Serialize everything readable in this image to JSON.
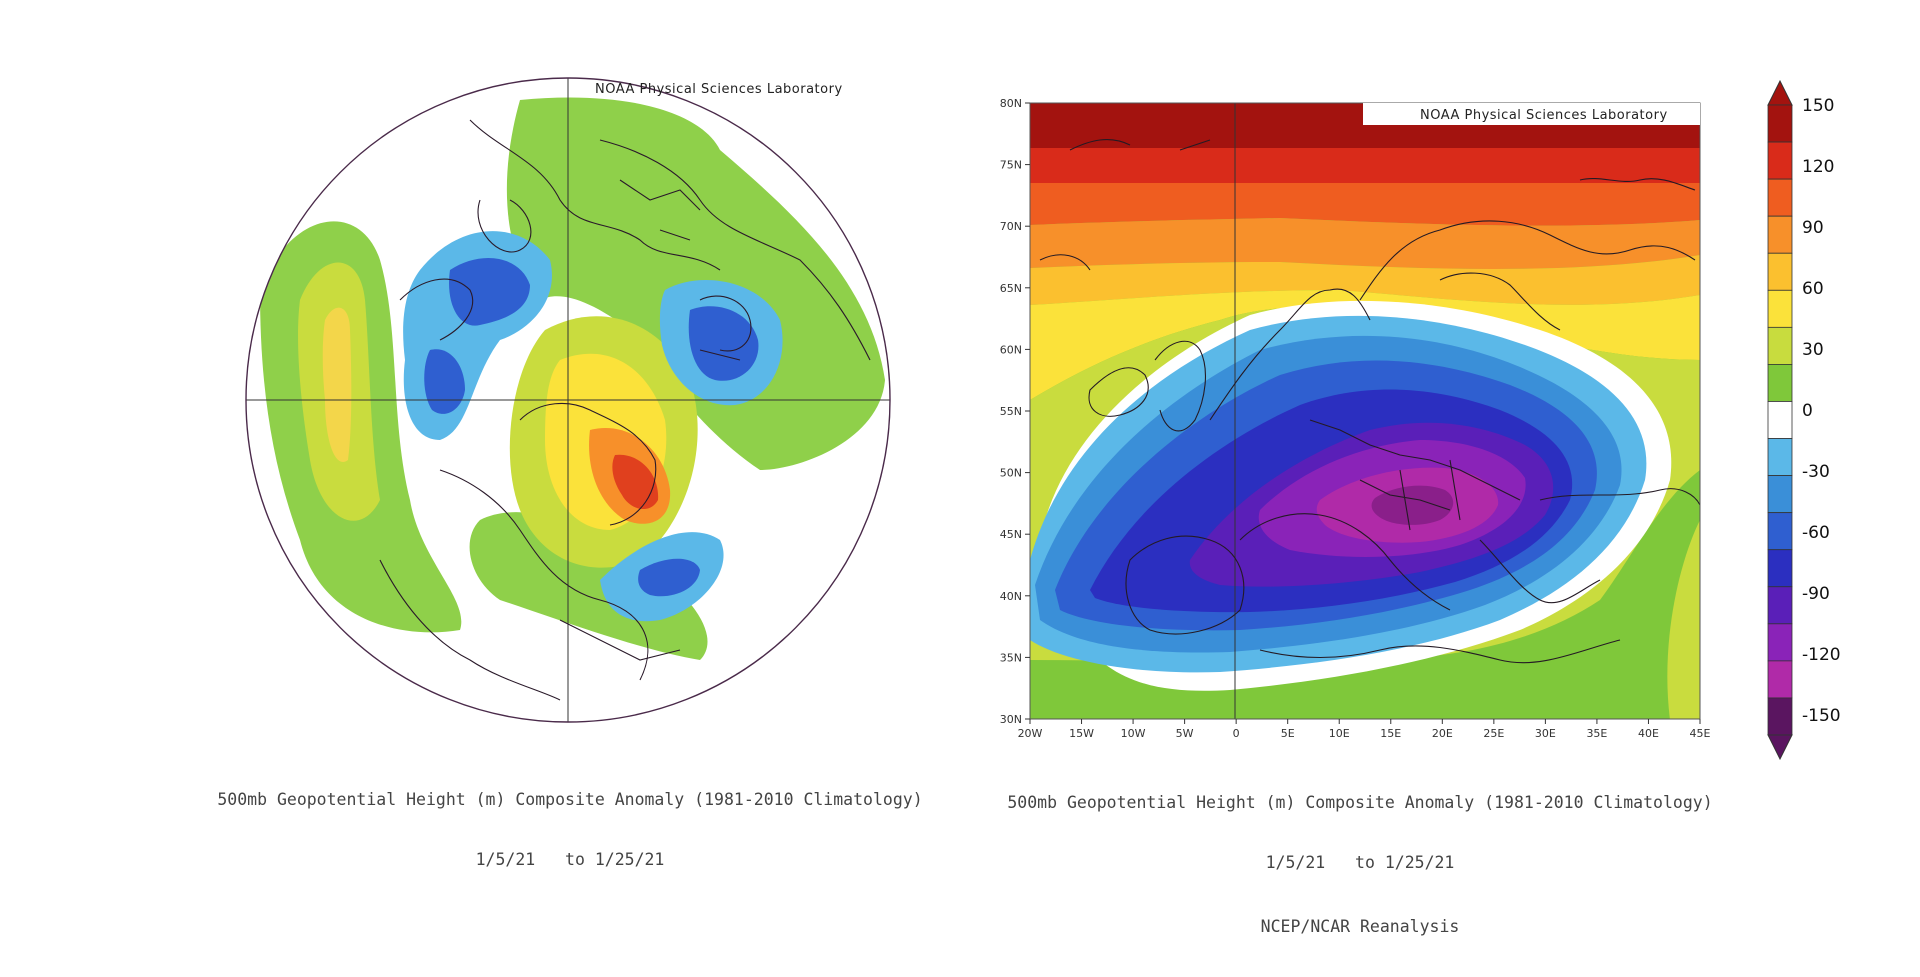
{
  "credit": "NOAA Physical Sciences Laboratory",
  "left_panel": {
    "title": "500mb Geopotential Height (m) Composite Anomaly (1981-2010 Climatology)",
    "dates": "1/5/21   to 1/25/21"
  },
  "right_panel": {
    "title": "500mb Geopotential Height (m) Composite Anomaly (1981-2010 Climatology)",
    "dates": "1/5/21   to 1/25/21",
    "source": "NCEP/NCAR Reanalysis",
    "lat_ticks": [
      "80N",
      "75N",
      "70N",
      "65N",
      "60N",
      "55N",
      "50N",
      "45N",
      "40N",
      "35N",
      "30N"
    ],
    "lon_ticks": [
      "20W",
      "15W",
      "10W",
      "5W",
      "0",
      "5E",
      "10E",
      "15E",
      "20E",
      "25E",
      "30E",
      "35E",
      "40E",
      "45E"
    ]
  },
  "colorbar": {
    "labels": [
      "150",
      "120",
      "90",
      "60",
      "30",
      "0",
      "-30",
      "-60",
      "-90",
      "-120",
      "-150"
    ],
    "colors": [
      "#a3130f",
      "#d92b1a",
      "#ef5d20",
      "#f7902a",
      "#fbc02f",
      "#fbe23a",
      "#c8dc3e",
      "#7fc83a",
      "#ffffff",
      "#5bb8e8",
      "#3a8fd8",
      "#2f5fd0",
      "#2b2fc0",
      "#5a1fb8",
      "#8a23b8",
      "#b02aa8",
      "#5a1560"
    ]
  }
}
